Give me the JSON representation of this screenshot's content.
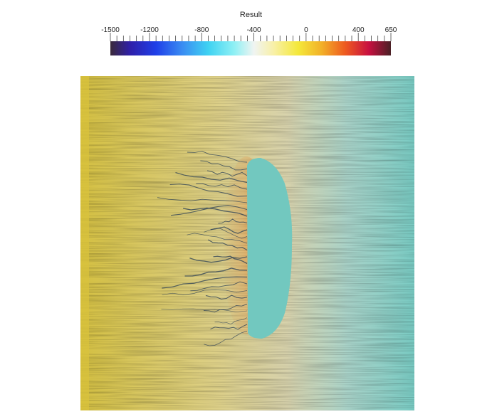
{
  "legend": {
    "title": "Result",
    "range": [
      -1500,
      650
    ],
    "tick_labels": [
      "-1500",
      "-1200",
      "-800",
      "-400",
      "0",
      "400",
      "650"
    ],
    "tick_values": [
      -1500,
      -1200,
      -800,
      -400,
      0,
      400,
      650
    ],
    "colormap": [
      {
        "value": -1500,
        "color": "#3b2a3a"
      },
      {
        "value": -1350,
        "color": "#2f1fa8"
      },
      {
        "value": -1150,
        "color": "#1f3fe8"
      },
      {
        "value": -950,
        "color": "#3a8cf2"
      },
      {
        "value": -750,
        "color": "#3fd2f2"
      },
      {
        "value": -550,
        "color": "#8ff0f4"
      },
      {
        "value": -400,
        "color": "#f0f4f2"
      },
      {
        "value": -250,
        "color": "#f8f0a8"
      },
      {
        "value": -60,
        "color": "#f4e83a"
      },
      {
        "value": 120,
        "color": "#f2b028"
      },
      {
        "value": 300,
        "color": "#ee5a20"
      },
      {
        "value": 480,
        "color": "#c81040"
      },
      {
        "value": 650,
        "color": "#4a2026"
      }
    ]
  },
  "field": {
    "background_left_color": "#d4c042",
    "background_mid_color": "#d8d3ad",
    "background_right_color": "#79cbc3",
    "obstacle_color": "#72c8bf",
    "hotspot_color": "#e8781e"
  }
}
